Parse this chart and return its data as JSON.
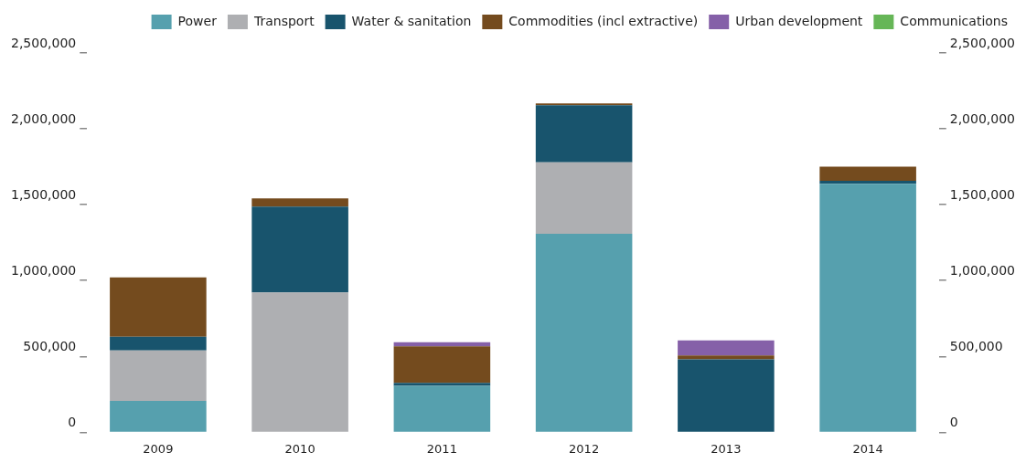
{
  "chart_data": {
    "type": "bar",
    "stacked": true,
    "categories": [
      "2009",
      "2010",
      "2011",
      "2012",
      "2013",
      "2014"
    ],
    "series": [
      {
        "name": "Power",
        "color": "#56a0ae",
        "values": [
          207000,
          0,
          306000,
          1309000,
          0,
          1638000
        ]
      },
      {
        "name": "Transport",
        "color": "#aeafb2",
        "values": [
          333000,
          921000,
          0,
          470000,
          0,
          0
        ]
      },
      {
        "name": "Water & sanitation",
        "color": "#18546d",
        "values": [
          90000,
          566000,
          20000,
          376000,
          481000,
          20000
        ]
      },
      {
        "name": "Commodities (incl extractive)",
        "color": "#744b1e",
        "values": [
          391000,
          54000,
          240000,
          13000,
          25000,
          93000
        ]
      },
      {
        "name": "Urban development",
        "color": "#8560a8",
        "values": [
          0,
          0,
          28000,
          0,
          100000,
          0
        ]
      },
      {
        "name": "Communications",
        "color": "#66b657",
        "values": [
          0,
          0,
          0,
          0,
          0,
          0
        ]
      }
    ],
    "ylim": [
      0,
      2500000
    ],
    "yticks": [
      0,
      {
        "value": 500000,
        "label": "500,000"
      },
      {
        "value": 1000000,
        "label": "1,000,000"
      },
      {
        "value": 1500000,
        "label": "1,500,000"
      },
      {
        "value": 2000000,
        "label": "2,000,000"
      },
      {
        "value": 2500000,
        "label": "2,500,000"
      }
    ],
    "y2lim": [
      0,
      2500000
    ],
    "y2ticks": [
      0,
      {
        "value": 500000,
        "label": "500,000"
      },
      {
        "value": 1000000,
        "label": "1,000,000"
      },
      {
        "value": 1500000,
        "label": "1,500,000"
      },
      {
        "value": 2000000,
        "label": "2,000,000"
      },
      {
        "value": 2500000,
        "label": "2,500,000"
      }
    ],
    "grid": false,
    "legend": "top right"
  }
}
